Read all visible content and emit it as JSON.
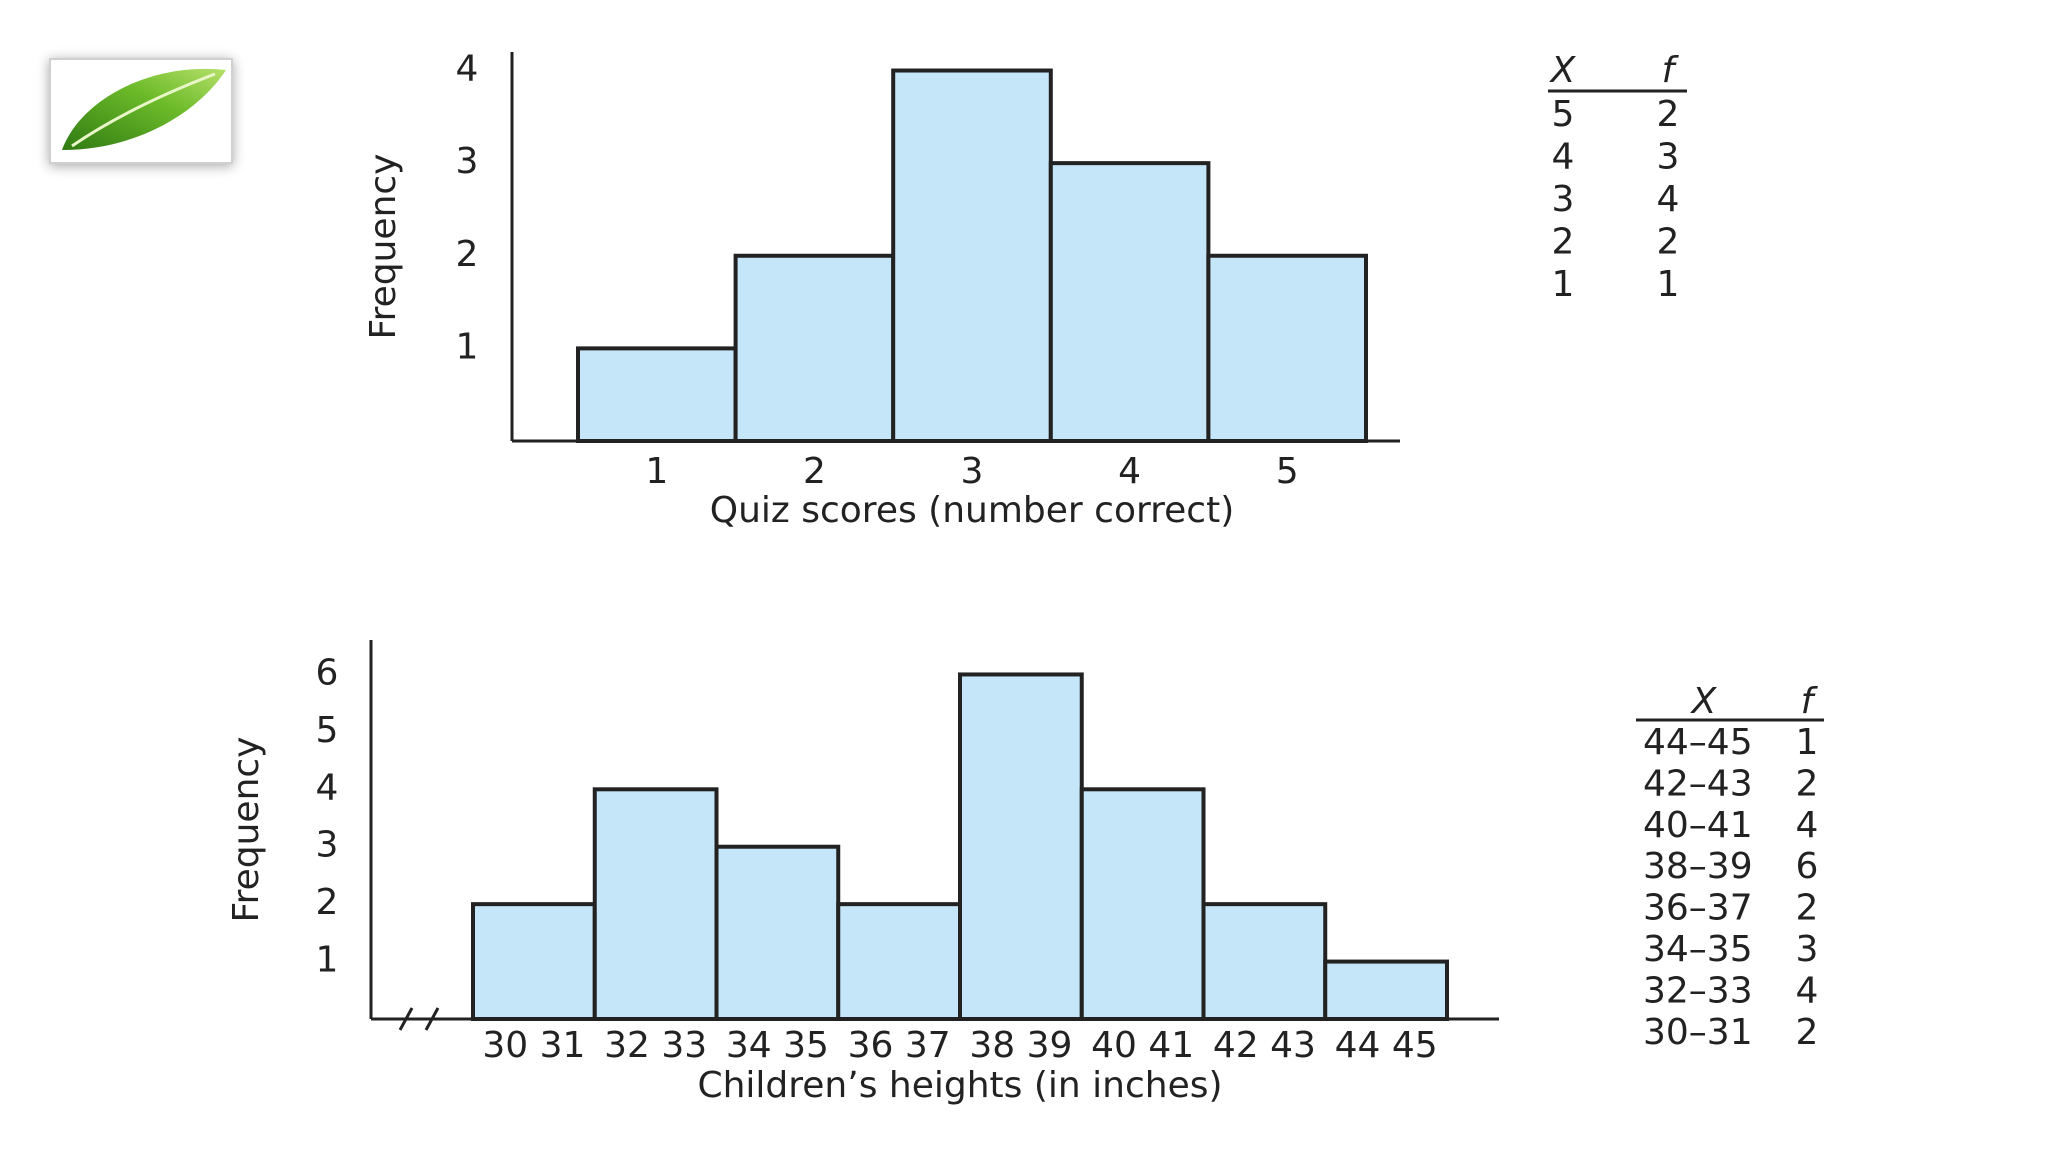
{
  "chart_data": [
    {
      "type": "bar",
      "x_label": "Quiz scores (number correct)",
      "y_label": "Frequency",
      "categories": [
        "1",
        "2",
        "3",
        "4",
        "5"
      ],
      "values": [
        1,
        2,
        4,
        3,
        2
      ],
      "color": "#c5e5f8",
      "ylim": [
        0,
        4.2
      ],
      "yticks": [
        1,
        2,
        3,
        4
      ],
      "grid": false,
      "table": {
        "header": [
          "X",
          "f"
        ],
        "rows": [
          [
            "5",
            "2"
          ],
          [
            "4",
            "3"
          ],
          [
            "3",
            "4"
          ],
          [
            "2",
            "2"
          ],
          [
            "1",
            "1"
          ]
        ]
      }
    },
    {
      "type": "bar",
      "x_label": "Children’s heights (in inches)",
      "y_label": "Frequency",
      "categories": [
        "30 31",
        "32 33",
        "34 35",
        "36 37",
        "38 39",
        "40 41",
        "42 43",
        "44 45"
      ],
      "values": [
        2,
        4,
        3,
        2,
        6,
        4,
        2,
        1
      ],
      "color": "#c5e5f8",
      "ylim": [
        0,
        6.6
      ],
      "yticks": [
        1,
        2,
        3,
        4,
        5,
        6
      ],
      "grid": false,
      "table": {
        "header": [
          "X",
          "f"
        ],
        "rows": [
          [
            "44–45",
            "1"
          ],
          [
            "42–43",
            "2"
          ],
          [
            "40–41",
            "4"
          ],
          [
            "38–39",
            "6"
          ],
          [
            "36–37",
            "2"
          ],
          [
            "34–35",
            "3"
          ],
          [
            "32–33",
            "4"
          ],
          [
            "30–31",
            "2"
          ]
        ]
      }
    }
  ]
}
